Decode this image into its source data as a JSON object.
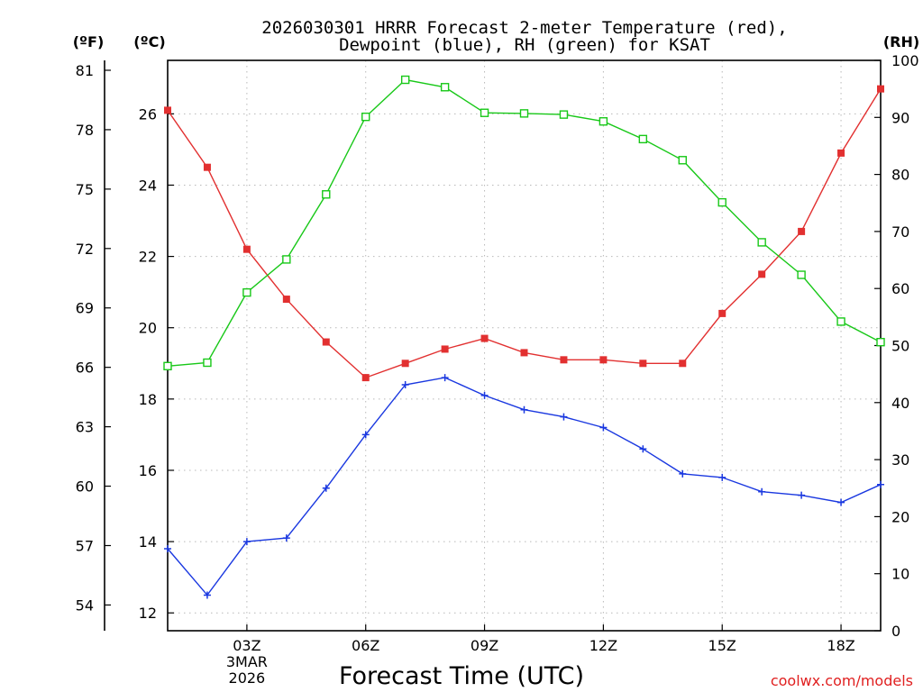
{
  "chart_data": {
    "type": "line",
    "title_lines": [
      "2026030301 HRRR Forecast 2-meter Temperature (red),",
      "Dewpoint (blue), RH (green) for KSAT"
    ],
    "xlabel": "Forecast Time (UTC)",
    "watermark": "coolwx.com/models",
    "unit_labels": {
      "fahrenheit": "(ºF)",
      "celsius": "(ºC)",
      "rh": "(RH)"
    },
    "x": [
      1,
      2,
      3,
      4,
      5,
      6,
      7,
      8,
      9,
      10,
      11,
      12,
      13,
      14,
      15,
      16,
      17,
      18,
      19
    ],
    "xlim": [
      1,
      19
    ],
    "x_ticks": [
      {
        "x": 3,
        "lines": [
          "03Z",
          "3MAR",
          "2026"
        ]
      },
      {
        "x": 6,
        "lines": [
          "06Z"
        ]
      },
      {
        "x": 9,
        "lines": [
          "09Z"
        ]
      },
      {
        "x": 12,
        "lines": [
          "12Z"
        ]
      },
      {
        "x": 15,
        "lines": [
          "15Z"
        ]
      },
      {
        "x": 18,
        "lines": [
          "18Z"
        ]
      }
    ],
    "celsius_axis": {
      "ylim": [
        11.5,
        27.5
      ],
      "ticks": [
        12,
        14,
        16,
        18,
        20,
        22,
        24,
        26
      ]
    },
    "fahrenheit_axis": {
      "ylim": [
        52.7,
        81.5
      ],
      "ticks": [
        54,
        57,
        60,
        63,
        66,
        69,
        72,
        75,
        78,
        81
      ]
    },
    "rh_axis": {
      "ylim": [
        0,
        100
      ],
      "ticks": [
        0,
        10,
        20,
        30,
        40,
        50,
        60,
        70,
        80,
        90,
        100
      ]
    },
    "series": [
      {
        "name": "Temperature",
        "axis": "celsius",
        "color": "#e23030",
        "marker": "filled-square",
        "values": [
          26.1,
          24.5,
          22.2,
          20.8,
          19.6,
          18.6,
          19.0,
          19.4,
          19.7,
          19.3,
          19.1,
          19.1,
          19.0,
          19.0,
          20.4,
          21.5,
          22.7,
          24.9,
          26.7
        ]
      },
      {
        "name": "Dewpoint",
        "axis": "celsius",
        "color": "#1a38e0",
        "marker": "plus",
        "values": [
          13.8,
          12.5,
          14.0,
          14.1,
          15.5,
          17.0,
          18.4,
          18.6,
          18.1,
          17.7,
          17.5,
          17.2,
          16.6,
          15.9,
          15.8,
          15.4,
          15.3,
          15.1,
          15.6
        ]
      },
      {
        "name": "RH",
        "axis": "rh",
        "color": "#18c818",
        "marker": "open-square",
        "values": [
          46.4,
          47.0,
          59.3,
          65.1,
          76.5,
          90.1,
          96.6,
          95.3,
          90.8,
          90.7,
          90.5,
          89.3,
          86.2,
          82.5,
          75.1,
          68.1,
          62.4,
          54.2,
          50.6
        ]
      }
    ]
  }
}
